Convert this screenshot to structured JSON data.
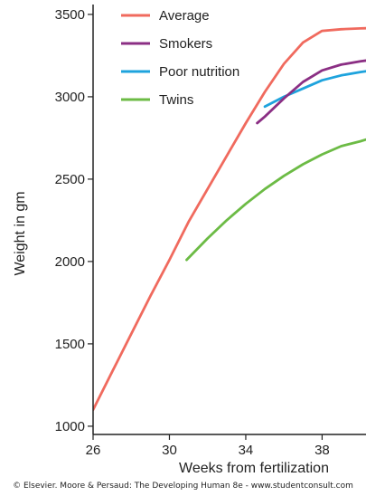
{
  "chart_data": {
    "type": "line",
    "xlabel": "Weeks from fertilization",
    "ylabel": "Weight in gm",
    "xlim": [
      26,
      40.3
    ],
    "ylim": [
      950,
      3560
    ],
    "xticks": [
      26,
      30,
      34,
      38
    ],
    "yticks": [
      1000,
      1500,
      2000,
      2500,
      3000,
      3500
    ],
    "legend_position": "top-left",
    "grid": false,
    "series": [
      {
        "name": "Average",
        "color": "#f06a5e",
        "x": [
          26,
          27,
          28,
          29,
          30,
          31,
          32,
          33,
          34,
          35,
          36,
          37,
          38,
          39,
          40,
          40.3
        ],
        "y": [
          1100,
          1330,
          1560,
          1790,
          2010,
          2240,
          2440,
          2640,
          2840,
          3030,
          3200,
          3330,
          3400,
          3410,
          3415,
          3416
        ]
      },
      {
        "name": "Smokers",
        "color": "#8b2f84",
        "x": [
          34.6,
          35,
          36,
          37,
          38,
          39,
          40,
          40.3
        ],
        "y": [
          2840,
          2880,
          2990,
          3090,
          3160,
          3195,
          3215,
          3220
        ]
      },
      {
        "name": "Poor nutrition",
        "color": "#1ea3dd",
        "x": [
          35,
          36,
          37,
          38,
          39,
          40,
          40.3
        ],
        "y": [
          2940,
          3000,
          3050,
          3100,
          3130,
          3150,
          3155
        ]
      },
      {
        "name": "Twins",
        "color": "#6cbb45",
        "x": [
          30.9,
          32,
          33,
          34,
          35,
          36,
          37,
          38,
          39,
          40,
          40.3
        ],
        "y": [
          2010,
          2140,
          2250,
          2350,
          2440,
          2520,
          2590,
          2650,
          2700,
          2730,
          2740
        ]
      }
    ]
  },
  "credit": "© Elsevier. Moore & Persaud: The Developing Human 8e - www.studentconsult.com"
}
